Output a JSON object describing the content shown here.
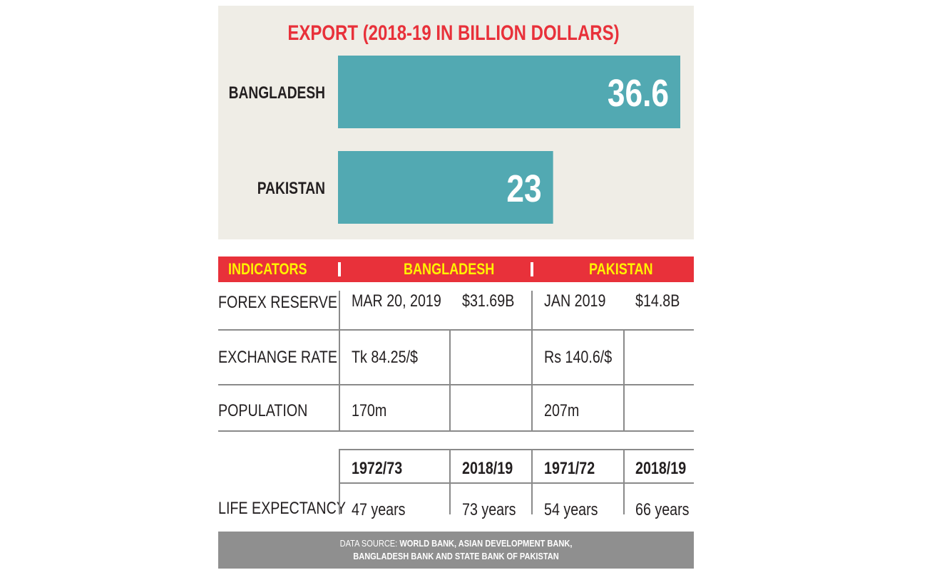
{
  "chart_data": {
    "type": "bar",
    "orientation": "horizontal",
    "title": "EXPORT (2018-19 IN BILLION DOLLARS)",
    "categories": [
      "BANGLADESH",
      "PAKISTAN"
    ],
    "values": [
      36.6,
      23
    ],
    "value_labels": [
      "36.6",
      "23"
    ],
    "xlim": [
      0,
      36.6
    ],
    "grid": false,
    "bar_color": "#52a9b2",
    "title_color": "#e8313a",
    "background": "#efede6"
  },
  "table": {
    "header": {
      "indicators": "INDICATORS",
      "bangladesh": "BANGLADESH",
      "pakistan": "PAKISTAN"
    },
    "rows": {
      "forex": {
        "label": "FOREX RESERVE",
        "bd_date": "MAR 20, 2019",
        "bd_value": "$31.69B",
        "pk_date": "JAN 2019",
        "pk_value": "$14.8B"
      },
      "exchange": {
        "label": "EXCHANGE RATE",
        "bd_value": "Tk 84.25/$",
        "pk_value": "Rs 140.6/$"
      },
      "population": {
        "label": "POPULATION",
        "bd_value": "170m",
        "pk_value": "207m"
      },
      "life": {
        "label": "LIFE EXPECTANCY",
        "years": [
          "1972/73",
          "2018/19",
          "1971/72",
          "2018/19"
        ],
        "values": [
          "47 years",
          "73 years",
          "54 years",
          "66 years"
        ]
      }
    }
  },
  "footer": {
    "prefix": "DATA SOURCE: ",
    "line1": "WORLD BANK, ASIAN DEVELOPMENT BANK,",
    "line2": "BANGLADESH BANK AND STATE BANK OF PAKISTAN"
  },
  "colors": {
    "header_bg": "#e8313a",
    "header_text": "#fff200",
    "footer_bg": "#8f8f8f"
  }
}
